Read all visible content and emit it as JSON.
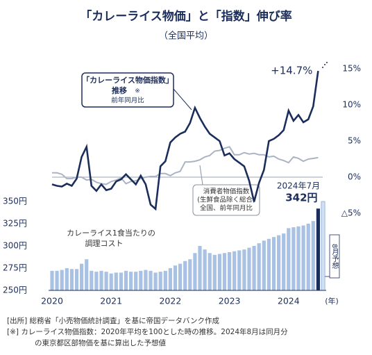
{
  "chart_data": [
    {
      "type": "line",
      "title": "「カレーライス物価」と「指数」伸び率",
      "subtitle": "（全国平均）",
      "ylim": [
        -6.25,
        16.25
      ],
      "yticks": [
        {
          "value": 15,
          "label": "15%"
        },
        {
          "value": 10,
          "label": "10%"
        },
        {
          "value": 5,
          "label": "5%"
        },
        {
          "value": 0,
          "label": "0%"
        },
        {
          "value": -5,
          "label": "△5%"
        }
      ],
      "zero_line": true,
      "series": [
        {
          "name": "「カレーライス物価指数」",
          "color": "#1b2d5b",
          "values": [
            -1.0,
            -1.2,
            -1.3,
            -0.9,
            -1.2,
            -0.2,
            2.8,
            4.2,
            -1.2,
            -1.9,
            -1.0,
            -1.8,
            -1.6,
            -0.6,
            -0.3,
            0.4,
            -0.3,
            -1.0,
            0.2,
            -1.0,
            -3.8,
            -4.4,
            1.5,
            2.2,
            4.8,
            5.5,
            6.0,
            6.3,
            7.5,
            9.6,
            8.2,
            7.0,
            6.0,
            5.5,
            5.0,
            3.0,
            3.3,
            2.5,
            2.0,
            1.5,
            -0.5,
            -3.4,
            -0.8,
            1.0,
            5.0,
            5.3,
            5.8,
            6.5,
            9.2,
            7.8,
            8.6,
            7.6,
            8.0,
            9.8,
            14.7
          ],
          "value_labels": [
            null,
            null,
            null,
            null,
            null,
            null,
            null,
            null,
            null,
            null,
            null,
            null,
            null,
            null,
            null,
            null,
            null,
            null,
            null,
            null,
            null,
            null,
            null,
            null,
            null,
            null,
            null,
            null,
            null,
            null,
            null,
            null,
            null,
            null,
            null,
            null,
            null,
            null,
            null,
            null,
            null,
            null,
            null,
            null,
            null,
            null,
            null,
            null,
            null,
            null,
            null,
            null,
            null,
            null,
            "+14.7%"
          ]
        },
        {
          "name": "消費者物価指数",
          "color": "#aab4c4",
          "values": [
            0.6,
            0.6,
            0.4,
            -0.2,
            -0.2,
            0,
            0,
            -0.4,
            -0.3,
            -0.7,
            -0.9,
            -1.0,
            -0.6,
            -0.4,
            -0.1,
            -0.9,
            -0.6,
            -0.5,
            -0.2,
            0,
            0.1,
            0.1,
            0.5,
            0.5,
            0.2,
            0.6,
            0.8,
            2.1,
            2.1,
            2.2,
            2.4,
            2.8,
            3.0,
            3.6,
            3.7,
            4.0,
            4.2,
            3.1,
            3.1,
            3.4,
            3.2,
            3.3,
            3.1,
            3.1,
            2.8,
            2.9,
            2.5,
            2.3,
            2.0,
            2.8,
            2.6,
            2.2,
            2.5,
            2.6,
            2.7
          ]
        }
      ],
      "annotations": [
        "推移",
        "※",
        "前年同月比",
        "(生鮮食品除く総合)",
        "全国、前年同月比"
      ]
    },
    {
      "type": "bar",
      "categories": [
        "2020",
        null,
        null,
        null,
        null,
        null,
        null,
        null,
        null,
        null,
        null,
        null,
        "2021",
        null,
        null,
        null,
        null,
        null,
        null,
        null,
        null,
        null,
        null,
        null,
        "2022",
        null,
        null,
        null,
        null,
        null,
        null,
        null,
        null,
        null,
        null,
        null,
        "2023",
        null,
        null,
        null,
        null,
        null,
        null,
        null,
        null,
        null,
        null,
        null,
        "2024",
        null,
        null,
        null,
        null,
        null,
        null,
        null
      ],
      "x_label": "(年)",
      "ylim": [
        250,
        350
      ],
      "yticks": [
        {
          "value": 350,
          "label": "350円"
        },
        {
          "value": 325,
          "label": "325円"
        },
        {
          "value": 300,
          "label": "300円"
        },
        {
          "value": 275,
          "label": "275円"
        },
        {
          "value": 250,
          "label": "250円"
        }
      ],
      "series": [
        {
          "name": "カレーライス1食当たりの",
          "values": [
            272,
            272,
            273,
            275,
            274,
            274,
            280,
            285,
            272,
            271,
            272,
            271,
            269,
            270,
            270,
            272,
            271,
            271,
            272,
            273,
            272,
            270,
            271,
            272,
            275,
            278,
            280,
            283,
            285,
            292,
            300,
            296,
            292,
            290,
            291,
            292,
            293,
            294,
            295,
            296,
            298,
            300,
            303,
            306,
            308,
            310,
            312,
            314,
            320,
            321,
            322,
            323,
            325,
            328,
            342,
            350
          ],
          "value_labels": [
            null,
            null,
            null,
            null,
            null,
            null,
            null,
            null,
            null,
            null,
            null,
            null,
            null,
            null,
            null,
            null,
            null,
            null,
            null,
            null,
            null,
            null,
            null,
            null,
            null,
            null,
            null,
            null,
            null,
            null,
            null,
            null,
            null,
            null,
            null,
            null,
            null,
            null,
            null,
            null,
            null,
            null,
            null,
            null,
            null,
            null,
            null,
            null,
            null,
            null,
            null,
            null,
            null,
            null,
            "342円",
            null
          ],
          "colors": [
            "#a9c1e3",
            "#a9c1e3",
            "#a9c1e3",
            "#a9c1e3",
            "#a9c1e3",
            "#a9c1e3",
            "#a9c1e3",
            "#a9c1e3",
            "#a9c1e3",
            "#a9c1e3",
            "#a9c1e3",
            "#a9c1e3",
            "#a9c1e3",
            "#a9c1e3",
            "#a9c1e3",
            "#a9c1e3",
            "#a9c1e3",
            "#a9c1e3",
            "#a9c1e3",
            "#a9c1e3",
            "#a9c1e3",
            "#a9c1e3",
            "#a9c1e3",
            "#a9c1e3",
            "#a9c1e3",
            "#a9c1e3",
            "#a9c1e3",
            "#a9c1e3",
            "#a9c1e3",
            "#a9c1e3",
            "#a9c1e3",
            "#a9c1e3",
            "#a9c1e3",
            "#a9c1e3",
            "#a9c1e3",
            "#a9c1e3",
            "#a9c1e3",
            "#a9c1e3",
            "#a9c1e3",
            "#a9c1e3",
            "#a9c1e3",
            "#a9c1e3",
            "#a9c1e3",
            "#a9c1e3",
            "#a9c1e3",
            "#a9c1e3",
            "#a9c1e3",
            "#a9c1e3",
            "#a9c1e3",
            "#a9c1e3",
            "#a9c1e3",
            "#a9c1e3",
            "#a9c1e3",
            "#a9c1e3",
            "#1b2d5b",
            "#cfe0f2"
          ]
        }
      ],
      "annotations": [
        "調理コスト",
        "2024年7月",
        "8月予想"
      ]
    },
    {
      "type": "notes",
      "lines": [
        "[出所]  総務省「小売物価統計調査」を基に帝国データバンク作成",
        "[※]  カレーライス物価指数：2020年平均を100とした時の推移。2024年8月は同月分",
        "の東京都区部物価を基に算出した予想値"
      ]
    }
  ]
}
